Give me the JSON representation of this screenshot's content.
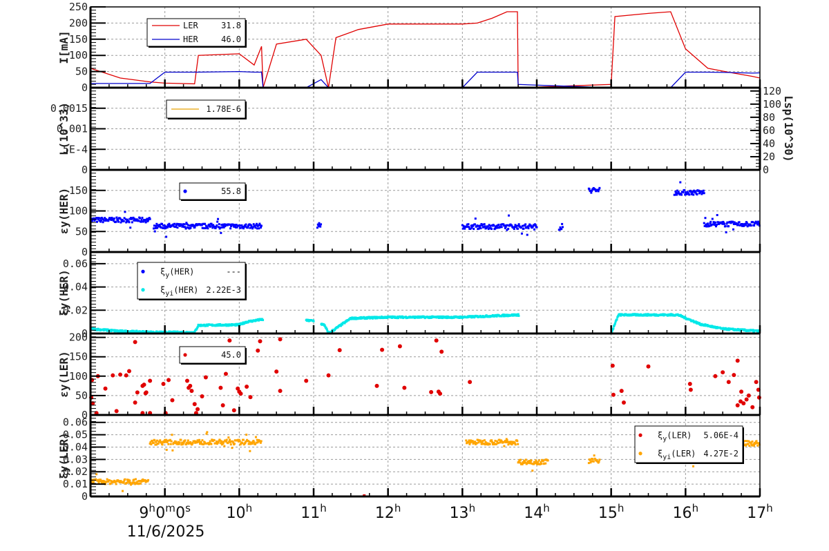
{
  "chart_data": [
    {
      "type": "line",
      "panel": 1,
      "ylabel": "I[mA]",
      "ylim": [
        0,
        250
      ],
      "yticks": [
        "0",
        "50",
        "100",
        "150",
        "200",
        "250"
      ],
      "legend": [
        {
          "name": "LER",
          "value": "31.8",
          "color": "#e00000"
        },
        {
          "name": "HER",
          "value": "46.0",
          "color": "#0000cc"
        }
      ],
      "x_hours": [
        8.0,
        8.4,
        8.8,
        9.0,
        9.4,
        9.45,
        10.0,
        10.2,
        10.3,
        10.32,
        10.5,
        10.9,
        11.1,
        11.2,
        11.3,
        11.6,
        12.0,
        12.5,
        13.0,
        13.2,
        13.4,
        13.6,
        13.74,
        13.75,
        15.0,
        15.05,
        15.5,
        15.8,
        16.0,
        16.3,
        16.6,
        16.9,
        17.0
      ],
      "series": [
        {
          "name": "LER",
          "values": [
            60,
            30,
            18,
            14,
            12,
            100,
            105,
            70,
            128,
            0,
            135,
            150,
            100,
            0,
            155,
            180,
            197,
            197,
            197,
            200,
            215,
            235,
            235,
            0,
            10,
            220,
            230,
            235,
            120,
            60,
            47,
            35,
            30
          ]
        },
        {
          "name": "HER",
          "values": [
            13,
            13,
            13,
            48,
            48,
            48,
            50,
            48,
            48,
            0,
            0,
            0,
            25,
            0,
            0,
            0,
            0,
            0,
            0,
            48,
            48,
            48,
            48,
            10,
            0,
            0,
            0,
            0,
            48,
            48,
            47,
            45,
            46
          ]
        }
      ]
    },
    {
      "type": "line",
      "panel": 2,
      "ylabel": "L(10^33)",
      "ylim": [
        0,
        0.002
      ],
      "yticks": [
        "0",
        "5E-4",
        "0.001",
        "0.0015"
      ],
      "y2label": "Lsp(10^30)",
      "y2lim": [
        0,
        125
      ],
      "y2ticks": [
        "0",
        "20",
        "40",
        "60",
        "80",
        "100",
        "120"
      ],
      "legend": [
        {
          "name": "",
          "value": "1.78E-6",
          "color": "#e6a000"
        }
      ],
      "series": []
    },
    {
      "type": "scatter",
      "panel": 3,
      "ylabel": "εy(HER)",
      "ylim": [
        0,
        200
      ],
      "yticks": [
        "0",
        "50",
        "100",
        "150"
      ],
      "legend": [
        {
          "name": "",
          "value": "55.8",
          "color": "#0000ff"
        }
      ],
      "segments": [
        {
          "from": 8.0,
          "to": 8.8,
          "level": 78
        },
        {
          "from": 8.85,
          "to": 10.3,
          "level": 63
        },
        {
          "from": 11.05,
          "to": 11.1,
          "level": 65
        },
        {
          "from": 13.0,
          "to": 14.0,
          "level": 62
        },
        {
          "from": 14.3,
          "to": 14.35,
          "level": 60
        },
        {
          "from": 14.7,
          "to": 14.85,
          "level": 150
        },
        {
          "from": 15.85,
          "to": 16.25,
          "level": 145
        },
        {
          "from": 16.25,
          "to": 17.0,
          "level": 68
        }
      ]
    },
    {
      "type": "scatter",
      "panel": 4,
      "ylabel": "ξy(HER)",
      "ylim": [
        0,
        0.07
      ],
      "yticks": [
        "0",
        "0.02",
        "0.04",
        "0.06"
      ],
      "legend": [
        {
          "name": "ξy(HER)",
          "value": "---",
          "color": "#0000ff"
        },
        {
          "name": "ξyi(HER)",
          "value": "2.22E-3",
          "color": "#00e8e8"
        }
      ],
      "x_hours": [
        8.0,
        8.4,
        8.9,
        9.4,
        9.45,
        10.0,
        10.1,
        10.3,
        11.0,
        11.15,
        11.2,
        11.5,
        12.0,
        13.0,
        13.74,
        15.0,
        15.1,
        15.5,
        15.9,
        16.2,
        16.5,
        17.0
      ],
      "values": [
        0.004,
        0.002,
        0.001,
        0.001,
        0.007,
        0.0075,
        0.01,
        0.012,
        0.011,
        0.007,
        0.0,
        0.013,
        0.014,
        0.014,
        0.016,
        0.0,
        0.016,
        0.016,
        0.016,
        0.008,
        0.004,
        0.002
      ]
    },
    {
      "type": "scatter",
      "panel": 5,
      "ylabel": "εy(LER)",
      "ylim": [
        0,
        210
      ],
      "yticks": [
        "0",
        "50",
        "100",
        "150",
        "200"
      ],
      "legend": [
        {
          "name": "",
          "value": "45.0",
          "color": "#e00000"
        }
      ],
      "points": [
        [
          8.01,
          45
        ],
        [
          8.02,
          90
        ],
        [
          8.03,
          30
        ],
        [
          8.08,
          5
        ],
        [
          8.1,
          100
        ],
        [
          8.2,
          68
        ],
        [
          8.3,
          102
        ],
        [
          8.35,
          10
        ],
        [
          8.4,
          104
        ],
        [
          8.48,
          102
        ],
        [
          8.52,
          113
        ],
        [
          8.6,
          32
        ],
        [
          8.6,
          188
        ],
        [
          8.63,
          58
        ],
        [
          8.7,
          5
        ],
        [
          8.7,
          75
        ],
        [
          8.72,
          78
        ],
        [
          8.74,
          56
        ],
        [
          8.75,
          58
        ],
        [
          8.8,
          5
        ],
        [
          8.8,
          88
        ],
        [
          8.98,
          80
        ],
        [
          9.01,
          5
        ],
        [
          9.05,
          90
        ],
        [
          9.1,
          38
        ],
        [
          9.3,
          88
        ],
        [
          9.32,
          70
        ],
        [
          9.34,
          75
        ],
        [
          9.36,
          62
        ],
        [
          9.4,
          28
        ],
        [
          9.42,
          5
        ],
        [
          9.44,
          15
        ],
        [
          9.5,
          48
        ],
        [
          9.55,
          97
        ],
        [
          9.75,
          70
        ],
        [
          9.78,
          25
        ],
        [
          9.82,
          106
        ],
        [
          9.87,
          192
        ],
        [
          9.93,
          12
        ],
        [
          9.98,
          68
        ],
        [
          10.0,
          60
        ],
        [
          10.02,
          55
        ],
        [
          10.1,
          73
        ],
        [
          10.15,
          46
        ],
        [
          10.25,
          166
        ],
        [
          10.28,
          190
        ],
        [
          10.5,
          112
        ],
        [
          10.55,
          62
        ],
        [
          10.55,
          195
        ],
        [
          10.9,
          88
        ],
        [
          11.2,
          102
        ],
        [
          11.35,
          167
        ],
        [
          11.85,
          75
        ],
        [
          11.92,
          168
        ],
        [
          12.16,
          177
        ],
        [
          12.22,
          70
        ],
        [
          12.58,
          59
        ],
        [
          12.65,
          192
        ],
        [
          12.68,
          60
        ],
        [
          12.7,
          55
        ],
        [
          12.72,
          163
        ],
        [
          13.1,
          85
        ],
        [
          15.02,
          127
        ],
        [
          15.03,
          52
        ],
        [
          15.14,
          62
        ],
        [
          15.17,
          32
        ],
        [
          15.5,
          125
        ],
        [
          16.06,
          80
        ],
        [
          16.07,
          65
        ],
        [
          16.4,
          100
        ],
        [
          16.5,
          110
        ],
        [
          16.58,
          85
        ],
        [
          16.65,
          103
        ],
        [
          16.7,
          25
        ],
        [
          16.7,
          140
        ],
        [
          16.74,
          35
        ],
        [
          16.75,
          60
        ],
        [
          16.78,
          30
        ],
        [
          16.82,
          40
        ],
        [
          16.85,
          50
        ],
        [
          16.9,
          20
        ],
        [
          16.95,
          85
        ],
        [
          16.98,
          65
        ],
        [
          16.99,
          45
        ]
      ]
    },
    {
      "type": "scatter",
      "panel": 6,
      "ylabel": "ξy(LER)",
      "ylim": [
        0,
        0.066
      ],
      "yticks": [
        "0",
        "0.01",
        "0.02",
        "0.03",
        "0.04",
        "0.05",
        "0.06"
      ],
      "legend": [
        {
          "name": "ξy(LER)",
          "value": "5.06E-4",
          "color": "#e00000"
        },
        {
          "name": "ξyi(LER)",
          "value": "4.27E-2",
          "color": "#ffa500"
        }
      ],
      "segments": [
        {
          "from": 8.0,
          "to": 8.78,
          "level": 0.012
        },
        {
          "from": 8.8,
          "to": 10.3,
          "level": 0.044
        },
        {
          "from": 13.05,
          "to": 13.75,
          "level": 0.044
        },
        {
          "from": 13.75,
          "to": 14.15,
          "level": 0.028
        },
        {
          "from": 14.7,
          "to": 14.85,
          "level": 0.029
        },
        {
          "from": 15.92,
          "to": 16.25,
          "level": 0.03
        },
        {
          "from": 16.25,
          "to": 17.0,
          "level": 0.043
        }
      ],
      "ler_point": [
        11.68,
        0.0
      ]
    }
  ],
  "x_axis": {
    "ticks": [
      "9h0m0s",
      "10h",
      "11h",
      "12h",
      "13h",
      "14h",
      "15h",
      "16h",
      "17h"
    ],
    "date": "11/6/2025",
    "range_hours": [
      8.0,
      17.0
    ]
  }
}
